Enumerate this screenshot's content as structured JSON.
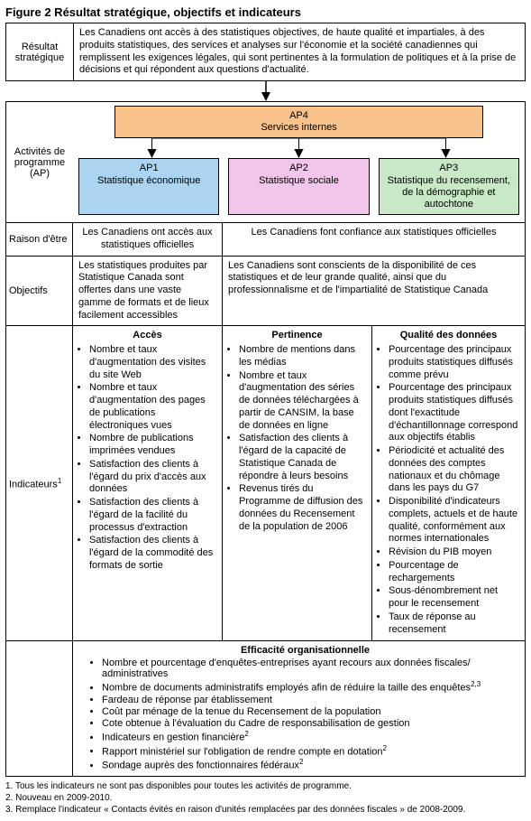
{
  "figure_title": "Figure 2   Résultat stratégique, objectifs et indicateurs",
  "result": {
    "label": "Résultat stratégique",
    "text": "Les Canadiens ont accès à des statistiques objectives, de haute qualité et impartiales, à des produits statistiques, des services et analyses sur l'économie et la société canadiennes qui remplissent les exigences légales, qui sont pertinentes à la formulation de politiques et à la prise de décisions et qui répondent aux questions d'actualité."
  },
  "ap4": {
    "code": "AP4",
    "name": "Services internes",
    "color": "#f8c28a"
  },
  "ap_label": "Activités de programme (AP)",
  "aps": [
    {
      "code": "AP1",
      "name": "Statistique économique",
      "color": "#aad4f0"
    },
    {
      "code": "AP2",
      "name": "Statistique sociale",
      "color": "#f2c6ea"
    },
    {
      "code": "AP3",
      "name": "Statistique du recensement, de la démographie et autochtone",
      "color": "#c8e8c8"
    }
  ],
  "raison": {
    "label": "Raison d'être",
    "c1": "Les Canadiens ont accès aux statistiques officielles",
    "c23": "Les Canadiens font confiance aux statistiques officielles"
  },
  "objectifs": {
    "label": "Objectifs",
    "c1": "Les statistiques produites par Statistique Canada sont offertes dans une vaste gamme de formats et de lieux facilement accessibles",
    "c23": "Les Canadiens sont conscients de la disponibilité de ces statistiques et de leur grande qualité, ainsi que du professionnalisme et de l'impartialité de Statistique Canada"
  },
  "indicateurs": {
    "label": "Indicateurs",
    "footmark": "1",
    "acces": {
      "title": "Accès",
      "items": [
        "Nombre et taux d'augmentation des visites du site Web",
        "Nombre et taux d'augmentation des pages de publications électroniques vues",
        "Nombre de publications imprimées vendues",
        "Satisfaction des clients à l'égard du prix d'accès aux données",
        "Satisfaction des clients à l'égard de la facilité du processus d'extraction",
        "Satisfaction des clients à l'égard de la commodité des formats de sortie"
      ]
    },
    "pertinence": {
      "title": "Pertinence",
      "items": [
        "Nombre de mentions dans les médias",
        "Nombre et taux d'augmentation des séries de données téléchargées à partir de CANSIM, la base de données en ligne",
        "Satisfaction des clients à l'égard de la capacité de Statistique Canada de répondre à leurs besoins",
        "Revenus tirés du Programme de diffusion des données du Recensement de la population de 2006"
      ]
    },
    "qualite": {
      "title": "Qualité des données",
      "items": [
        "Pourcentage des principaux produits statistiques diffusés comme prévu",
        "Pourcentage des principaux produits statistiques diffusés dont l'exactitude d'échantillonnage correspond aux objectifs établis",
        "Périodicité et actualité des données des comptes nationaux et du chômage dans les pays du G7",
        "Disponibilité d'indicateurs complets, actuels et de haute qualité, conformément aux normes internationales",
        "Révision du PIB moyen",
        "Pourcentage de rechargements",
        "Sous-dénombrement net pour le recensement",
        "Taux de réponse au recensement"
      ]
    }
  },
  "efficacite": {
    "title": "Efficacité organisationnelle",
    "items": [
      {
        "text": "Nombre et pourcentage d'enquêtes-entreprises ayant recours aux données fiscales/ administratives",
        "sup": ""
      },
      {
        "text": "Nombre de documents administratifs employés afin de réduire la taille des enquêtes",
        "sup": "2,3"
      },
      {
        "text": "Fardeau de réponse par établissement",
        "sup": ""
      },
      {
        "text": "Coût par ménage de la tenue du Recensement de la population",
        "sup": ""
      },
      {
        "text": "Cote obtenue à l'évaluation du Cadre de responsabilisation de gestion",
        "sup": ""
      },
      {
        "text": "Indicateurs en gestion financière",
        "sup": "2"
      },
      {
        "text": "Rapport ministériel sur l'obligation de rendre compte en dotation",
        "sup": "2"
      },
      {
        "text": "Sondage auprès des fonctionnaires fédéraux",
        "sup": "2"
      }
    ]
  },
  "footnotes": [
    "1. Tous les indicateurs ne sont pas disponibles pour toutes les activités de programme.",
    "2. Nouveau en 2009-2010.",
    "3. Remplace l'indicateur « Contacts évités en raison d'unités remplacées par des données fiscales » de 2008-2009."
  ],
  "style": {
    "arrow_color": "#000000",
    "border_color": "#000000",
    "background": "#ffffff"
  }
}
